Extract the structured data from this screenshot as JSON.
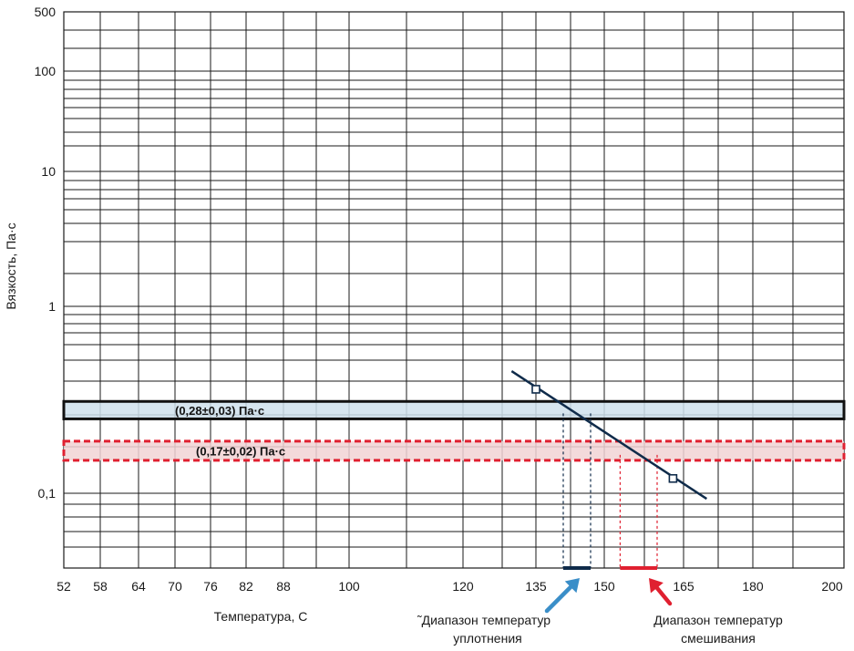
{
  "chart_data": {
    "type": "line",
    "title": "",
    "xlabel": "Температура, С",
    "ylabel": "Вязкость, Па·с",
    "x_ticks": [
      "52",
      "58",
      "64",
      "70",
      "76",
      "82",
      "88",
      "100",
      "120",
      "135",
      "150",
      "165",
      "180",
      "200"
    ],
    "y_ticks": [
      "500",
      "100",
      "10",
      "1",
      "0,1"
    ],
    "y_scale": "log",
    "ylim": [
      0.05,
      500
    ],
    "xlim": [
      52,
      200
    ],
    "grid": true,
    "series": [
      {
        "values": [
          {
            "x": 130,
            "y": 0.45
          },
          {
            "x": 170,
            "y": 0.095
          }
        ],
        "markers": [
          {
            "x": 135,
            "y": 0.36
          },
          {
            "x": 163,
            "y": 0.12
          }
        ],
        "color": "#0f2b4a"
      }
    ],
    "bands": [
      {
        "label": "(0,28±0,03) Па·с",
        "y_low": 0.25,
        "y_high": 0.31,
        "fill": "#cfe1ec",
        "stroke": "#111111",
        "style": "solid"
      },
      {
        "label": "(0,17±0,02) Па·с",
        "y_low": 0.15,
        "y_high": 0.19,
        "fill": "#f1d3d5",
        "stroke": "#e02030",
        "style": "dashed"
      }
    ],
    "ranges": [
      {
        "label": "Диапазон температур уплотнения",
        "x_low": 141,
        "x_high": 147,
        "color": "#0f2b4a"
      },
      {
        "label": "Диапазон температур смешивания",
        "x_low": 153,
        "x_high": 160,
        "color": "#e02030"
      }
    ],
    "annotations": {
      "compaction_line1": "˜Диапазон температур",
      "compaction_line2": "уплотнения",
      "mixing_line1": "Диапазон температур",
      "mixing_line2": "смешивания"
    }
  },
  "colors": {
    "grid": "#1a1a1a",
    "viscosity_line": "#0f2b4a",
    "compaction_arrow": "#3a8ec8",
    "mixing_arrow": "#e02030"
  }
}
